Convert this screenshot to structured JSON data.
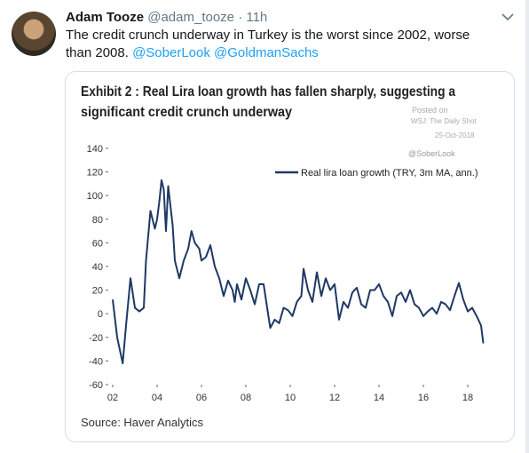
{
  "tweet": {
    "name": "Adam Tooze",
    "handle": "@adam_tooze",
    "time": "· 11h",
    "text": "The credit crunch underway in Turkey is the worst since 2002, worse than 2008.",
    "mentions": [
      "@SoberLook",
      "@GoldmanSachs"
    ]
  },
  "chart_data": {
    "type": "line",
    "title": [
      "Exhibit 2 : Real Lira loan growth has fallen sharply, suggesting a",
      "significant credit crunch underway"
    ],
    "annotations": [
      "Posted on",
      "WSJ: The Daily Shot",
      "25-Oct-2018",
      "@SoberLook"
    ],
    "source": "Source: Haver Analytics",
    "x": [
      2002.0,
      2002.2,
      2002.45,
      2002.6,
      2002.8,
      2003.0,
      2003.2,
      2003.4,
      2003.5,
      2003.7,
      2003.9,
      2004.0,
      2004.1,
      2004.2,
      2004.3,
      2004.4,
      2004.5,
      2004.7,
      2004.8,
      2005.0,
      2005.2,
      2005.4,
      2005.55,
      2005.7,
      2005.9,
      2006.0,
      2006.2,
      2006.4,
      2006.6,
      2006.8,
      2007.0,
      2007.2,
      2007.4,
      2007.5,
      2007.6,
      2007.8,
      2008.0,
      2008.2,
      2008.4,
      2008.6,
      2008.8,
      2009.0,
      2009.1,
      2009.3,
      2009.5,
      2009.7,
      2009.9,
      2010.1,
      2010.3,
      2010.5,
      2010.6,
      2010.8,
      2011.0,
      2011.2,
      2011.4,
      2011.6,
      2011.8,
      2012.0,
      2012.2,
      2012.4,
      2012.6,
      2012.8,
      2013.0,
      2013.2,
      2013.4,
      2013.6,
      2013.8,
      2014.0,
      2014.2,
      2014.4,
      2014.6,
      2014.8,
      2015.0,
      2015.2,
      2015.4,
      2015.6,
      2015.8,
      2016.0,
      2016.2,
      2016.4,
      2016.6,
      2016.8,
      2017.0,
      2017.2,
      2017.4,
      2017.6,
      2017.8,
      2018.0,
      2018.2,
      2018.4,
      2018.6,
      2018.7
    ],
    "series": [
      {
        "name": "Real lira loan growth (TRY, 3m MA, ann.)",
        "color": "#1f3864",
        "values": [
          12,
          -20,
          -42,
          -10,
          30,
          5,
          2,
          5,
          45,
          87,
          72,
          80,
          95,
          113,
          105,
          70,
          108,
          75,
          45,
          30,
          45,
          55,
          70,
          60,
          55,
          45,
          48,
          58,
          40,
          30,
          15,
          28,
          20,
          10,
          25,
          12,
          30,
          20,
          8,
          25,
          25,
          0,
          -12,
          -5,
          -8,
          5,
          3,
          -2,
          10,
          15,
          38,
          20,
          10,
          35,
          15,
          30,
          20,
          25,
          -5,
          10,
          5,
          18,
          22,
          8,
          5,
          20,
          20,
          25,
          15,
          10,
          -2,
          15,
          18,
          10,
          20,
          8,
          5,
          -2,
          2,
          5,
          0,
          10,
          8,
          3,
          15,
          26,
          12,
          2,
          5,
          -2,
          -10,
          -25
        ]
      }
    ],
    "xlim": [
      2001.8,
      2019.0
    ],
    "xticks": [
      {
        "value": 2002,
        "label": "02"
      },
      {
        "value": 2004,
        "label": "04"
      },
      {
        "value": 2006,
        "label": "06"
      },
      {
        "value": 2008,
        "label": "08"
      },
      {
        "value": 2010,
        "label": "10"
      },
      {
        "value": 2012,
        "label": "12"
      },
      {
        "value": 2014,
        "label": "14"
      },
      {
        "value": 2016,
        "label": "16"
      },
      {
        "value": 2018,
        "label": "18"
      }
    ],
    "ylim": [
      -60,
      140
    ],
    "yticks": [
      -60,
      -40,
      -20,
      0,
      20,
      40,
      60,
      80,
      100,
      120,
      140
    ],
    "grid": false
  }
}
